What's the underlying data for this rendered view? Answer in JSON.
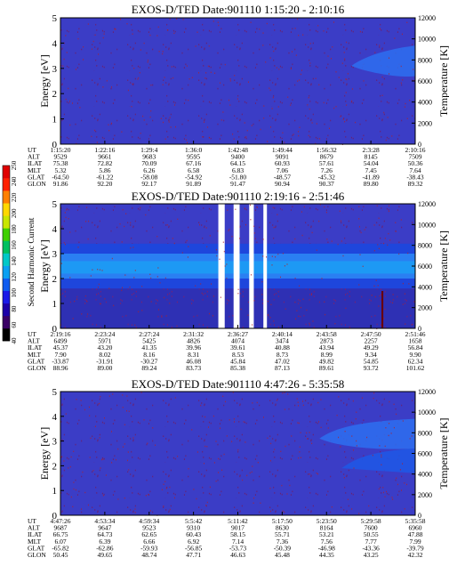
{
  "figure": {
    "colorbar": {
      "label": "Second Harmonic Current",
      "ticks": [
        "40",
        "60",
        "80",
        "100",
        "120",
        "140",
        "160",
        "180",
        "200",
        "220",
        "240",
        "250"
      ],
      "colors": [
        "#000000",
        "#3a0066",
        "#1c00a8",
        "#1a1ae8",
        "#0f5cf0",
        "#0aa0f2",
        "#00c8c8",
        "#00c060",
        "#40d000",
        "#c8e600",
        "#ffd800",
        "#ff8000",
        "#ff2000",
        "#e00000"
      ]
    }
  },
  "chart_data": [
    {
      "type": "heatmap",
      "title": "EXOS-D/TED   Date:901110   1:15:20 - 2:10:16",
      "ylabel": "Energy [eV]",
      "y2label": "Temperature [K]",
      "ylim": [
        0,
        5
      ],
      "y2lim": [
        0,
        12000
      ],
      "yticks": [
        "0",
        "1",
        "2",
        "3",
        "4",
        "5"
      ],
      "y2ticks": [
        "0",
        "2000",
        "4000",
        "6000",
        "8000",
        "10000",
        "12000"
      ],
      "ephemeris": [
        {
          "name": "UT",
          "values": [
            "1:15:20",
            "1:22:16",
            "1:29:4",
            "1:36:0",
            "1:42:48",
            "1:49:44",
            "1:56:32",
            "2:3:28",
            "2:10:16"
          ]
        },
        {
          "name": "ALT",
          "values": [
            "9529",
            "9661",
            "9683",
            "9595",
            "9400",
            "9091",
            "8679",
            "8145",
            "7509"
          ]
        },
        {
          "name": "ILAT",
          "values": [
            "75.38",
            "72.82",
            "70.09",
            "67.16",
            "64.15",
            "60.93",
            "57.61",
            "54.04",
            "50.36"
          ]
        },
        {
          "name": "MLT",
          "values": [
            "5.32",
            "5.86",
            "6.26",
            "6.58",
            "6.83",
            "7.06",
            "7.26",
            "7.45",
            "7.64"
          ]
        },
        {
          "name": "GLAT",
          "values": [
            "-64.50",
            "-61.22",
            "-58.08",
            "-54.92",
            "-51.80",
            "-48.57",
            "-45.32",
            "-41.89",
            "-38.43"
          ]
        },
        {
          "name": "GLON",
          "values": [
            "91.86",
            "92.20",
            "92.17",
            "91.89",
            "91.47",
            "90.94",
            "90.37",
            "89.80",
            "89.32"
          ]
        }
      ]
    },
    {
      "type": "heatmap",
      "title": "EXOS-D/TED   Date:901110   2:19:16 - 2:51:46",
      "ylabel": "Energy [eV]",
      "y2label": "Temperature [K]",
      "ylim": [
        0,
        5
      ],
      "y2lim": [
        0,
        12000
      ],
      "yticks": [
        "0",
        "1",
        "2",
        "3",
        "4",
        "5"
      ],
      "y2ticks": [
        "0",
        "2000",
        "4000",
        "6000",
        "8000",
        "10000",
        "12000"
      ],
      "ephemeris": [
        {
          "name": "UT",
          "values": [
            "2:19:16",
            "2:23:24",
            "2:27:24",
            "2:31:32",
            "2:36:27",
            "2:40:14",
            "2:43:58",
            "2:47:50",
            "2:51:46"
          ]
        },
        {
          "name": "ALT",
          "values": [
            "6499",
            "5971",
            "5425",
            "4826",
            "4074",
            "3474",
            "2873",
            "2257",
            "1658"
          ]
        },
        {
          "name": "ILAT",
          "values": [
            "45.37",
            "43.20",
            "41.35",
            "39.96",
            "39.61",
            "40.88",
            "43.94",
            "49.29",
            "56.84"
          ]
        },
        {
          "name": "MLT",
          "values": [
            "7.90",
            "8.02",
            "8.16",
            "8.31",
            "8.53",
            "8.73",
            "8.99",
            "9.34",
            "9.90"
          ]
        },
        {
          "name": "GLAT",
          "values": [
            "-33.87",
            "-31.91",
            "-30.27",
            "46.08",
            "45.84",
            "47.02",
            "49.82",
            "54.85",
            "62.34"
          ]
        },
        {
          "name": "GLON",
          "values": [
            "88.96",
            "89.00",
            "89.24",
            "83.73",
            "85.38",
            "87.13",
            "89.61",
            "93.72",
            "101.62"
          ]
        }
      ]
    },
    {
      "type": "heatmap",
      "title": "EXOS-D/TED   Date:901110   4:47:26 - 5:35:58",
      "ylabel": "Energy [eV]",
      "y2label": "Temperature [K]",
      "ylim": [
        0,
        5
      ],
      "y2lim": [
        0,
        12000
      ],
      "yticks": [
        "0",
        "1",
        "2",
        "3",
        "4",
        "5"
      ],
      "y2ticks": [
        "0",
        "2000",
        "4000",
        "6000",
        "8000",
        "10000",
        "12000"
      ],
      "ephemeris": [
        {
          "name": "UT",
          "values": [
            "4:47:26",
            "4:53:34",
            "4:59:34",
            "5:5:42",
            "5:11:42",
            "5:17:50",
            "5:23:50",
            "5:29:58",
            "5:35:58"
          ]
        },
        {
          "name": "ALT",
          "values": [
            "9687",
            "9647",
            "9523",
            "9310",
            "9017",
            "8630",
            "8164",
            "7600",
            "6960"
          ]
        },
        {
          "name": "ILAT",
          "values": [
            "66.75",
            "64.73",
            "62.65",
            "60.43",
            "58.15",
            "55.71",
            "53.21",
            "50.55",
            "47.88"
          ]
        },
        {
          "name": "MLT",
          "values": [
            "6.07",
            "6.39",
            "6.66",
            "6.92",
            "7.14",
            "7.36",
            "7.56",
            "7.77",
            "7.99"
          ]
        },
        {
          "name": "GLAT",
          "values": [
            "-65.82",
            "-62.86",
            "-59.93",
            "-56.85",
            "-53.73",
            "-50.39",
            "-46.98",
            "-43.36",
            "-39.79"
          ]
        },
        {
          "name": "GLON",
          "values": [
            "50.45",
            "49.65",
            "48.74",
            "47.71",
            "46.63",
            "45.48",
            "44.35",
            "43.25",
            "42.32"
          ]
        }
      ]
    }
  ]
}
